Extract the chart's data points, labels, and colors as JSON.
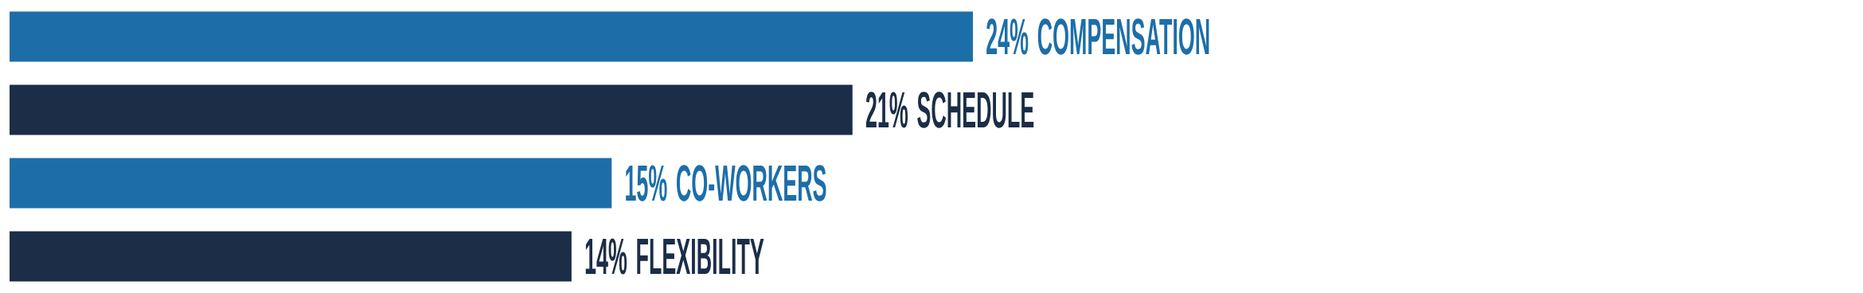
{
  "chart_data": {
    "type": "bar",
    "orientation": "horizontal",
    "categories": [
      "COMPENSATION",
      "SCHEDULE",
      "CO-WORKERS",
      "FLEXIBILITY"
    ],
    "values": [
      24,
      21,
      15,
      14
    ],
    "value_labels": [
      "24%",
      "21%",
      "15%",
      "14%"
    ],
    "colors": [
      "#1d6ea8",
      "#1b2d47",
      "#1d6ea8",
      "#1b2d47"
    ]
  }
}
